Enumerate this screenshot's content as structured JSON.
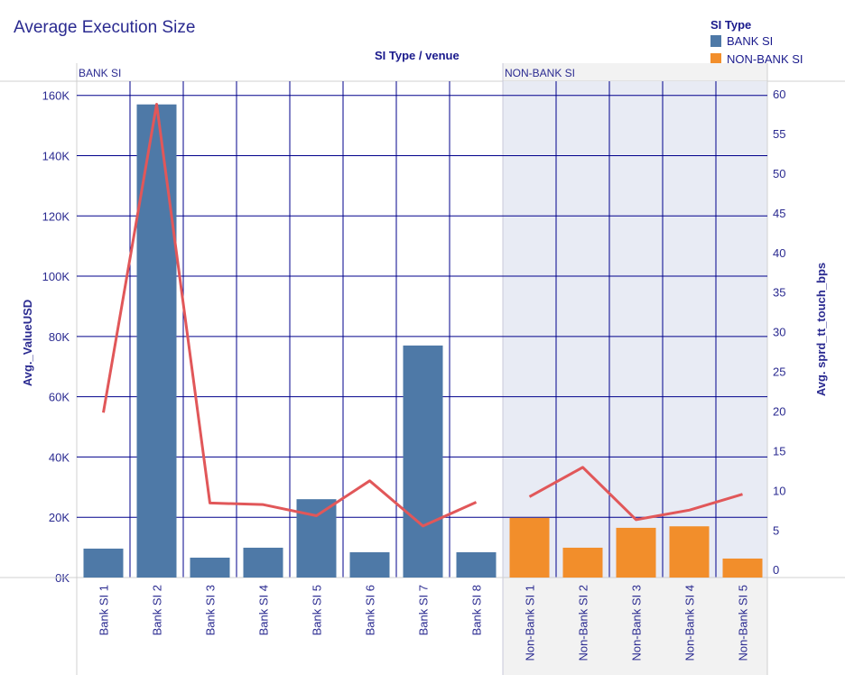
{
  "chart_data": {
    "type": "bar",
    "title": "Average Execution Size",
    "column_header": "SI Type / venue",
    "groups": [
      {
        "name": "BANK SI",
        "color": "#4e79a7",
        "categories": [
          "Bank SI 1",
          "Bank SI 2",
          "Bank SI 3",
          "Bank SI 4",
          "Bank SI 5",
          "Bank SI 6",
          "Bank SI 7",
          "Bank SI 8"
        ],
        "bar_values": [
          9600,
          157000,
          6600,
          9900,
          26000,
          8400,
          77000,
          8400
        ],
        "line_values": [
          19.8,
          58.7,
          8.4,
          8.2,
          6.8,
          11.2,
          5.5,
          8.5
        ]
      },
      {
        "name": "NON-BANK SI",
        "color": "#f28e2b",
        "categories": [
          "Non-Bank SI 1",
          "Non-Bank SI 2",
          "Non-Bank SI 3",
          "Non-Bank SI 4",
          "Non-Bank SI 5"
        ],
        "bar_values": [
          19800,
          9900,
          16500,
          17000,
          6300
        ],
        "line_values": [
          9.2,
          12.9,
          6.3,
          7.5,
          9.5
        ]
      }
    ],
    "ylabel": "Avg._ValueUSD",
    "y2label": "Avg. sprd_tt_touch_bps",
    "ylim": [
      0,
      164700
    ],
    "y2lim": [
      -1,
      61.6
    ],
    "yticks": [
      "0K",
      "20K",
      "40K",
      "60K",
      "80K",
      "100K",
      "120K",
      "140K",
      "160K"
    ],
    "ytick_values": [
      0,
      20000,
      40000,
      60000,
      80000,
      100000,
      120000,
      140000,
      160000
    ],
    "y2ticks": [
      "0",
      "5",
      "10",
      "15",
      "20",
      "25",
      "30",
      "35",
      "40",
      "45",
      "50",
      "55",
      "60"
    ],
    "line_color": "#e15759",
    "legend": {
      "title": "SI Type",
      "entries": [
        "BANK SI",
        "NON-BANK SI"
      ],
      "placement": "top-right"
    },
    "grid": true
  }
}
